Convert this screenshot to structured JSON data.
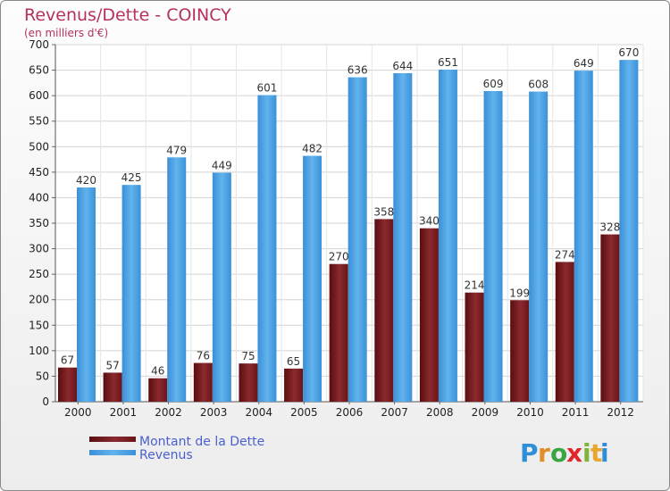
{
  "chart_data": {
    "type": "bar",
    "title": "Revenus/Dette - COINCY",
    "subtitle": "(en milliers d'€)",
    "categories": [
      "2000",
      "2001",
      "2002",
      "2003",
      "2004",
      "2005",
      "2006",
      "2007",
      "2008",
      "2009",
      "2010",
      "2011",
      "2012"
    ],
    "series": [
      {
        "name": "Montant de la Dette",
        "color": "#7a1a1d",
        "values": [
          67,
          57,
          46,
          76,
          75,
          65,
          270,
          358,
          340,
          214,
          199,
          274,
          328
        ]
      },
      {
        "name": "Revenus",
        "color": "#4aa3e6",
        "values": [
          420,
          425,
          479,
          449,
          601,
          482,
          636,
          644,
          651,
          609,
          608,
          649,
          670
        ]
      }
    ],
    "ylim": [
      0,
      700
    ],
    "yticks": [
      0,
      50,
      100,
      150,
      200,
      250,
      300,
      350,
      400,
      450,
      500,
      550,
      600,
      650,
      700
    ],
    "grid": true,
    "legend": "bottom-left"
  },
  "brand": {
    "letters": [
      "P",
      "r",
      "o",
      "x",
      "i",
      "t",
      "i"
    ],
    "colors": [
      "#2e8fd8",
      "#e38d2a",
      "#3aa544",
      "#e0262b",
      "#7fb33a",
      "#e7a62d",
      "#2e8fd8"
    ]
  }
}
